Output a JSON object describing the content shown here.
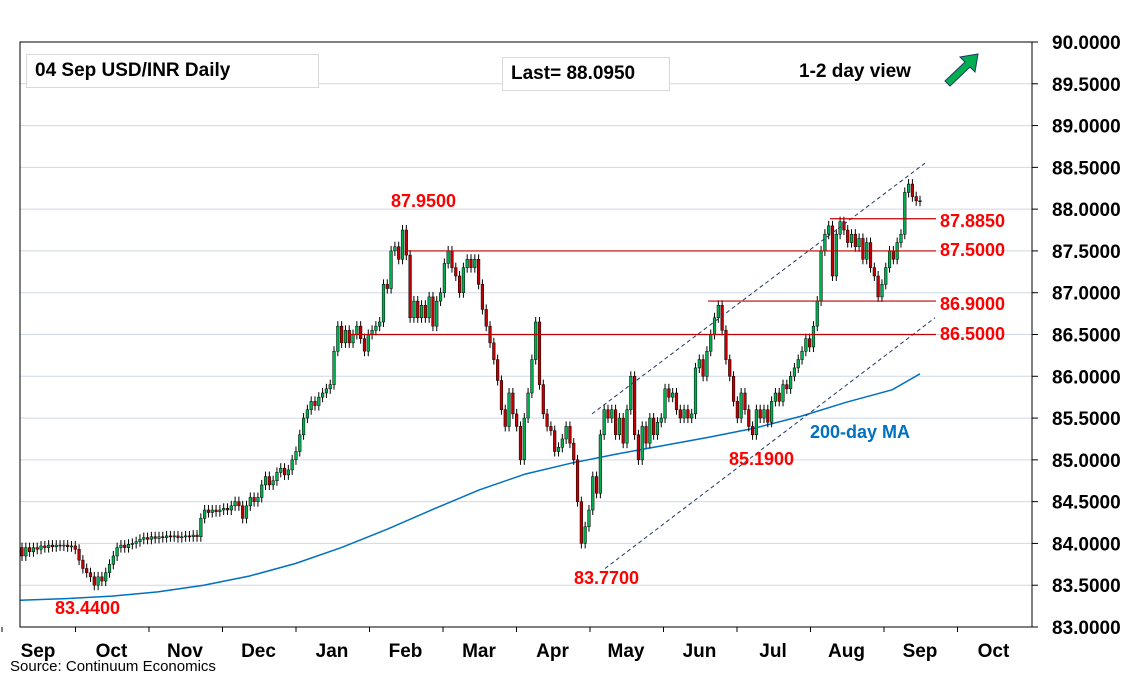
{
  "chart_data": {
    "type": "candlestick",
    "title": "04 Sep  USD/INR  Daily",
    "last_label": "Last= 88.0950",
    "view_label": "1-2 day view",
    "view_arrow": "up-arrow-icon",
    "source": "Source: Continuum Economics",
    "ylim": [
      83.0,
      90.0
    ],
    "y_ticks": [
      "90.0000",
      "89.5000",
      "89.0000",
      "88.5000",
      "88.0000",
      "87.5000",
      "87.0000",
      "86.5000",
      "86.0000",
      "85.5000",
      "85.0000",
      "84.5000",
      "84.0000",
      "83.5000",
      "83.0000"
    ],
    "x_ticks": [
      "Sep",
      "Oct",
      "Nov",
      "Dec",
      "Jan",
      "Feb",
      "Mar",
      "Apr",
      "May",
      "Jun",
      "Jul",
      "Aug",
      "Sep",
      "Oct"
    ],
    "grid": true,
    "colors": {
      "up": "#00b050",
      "down": "#c00000",
      "ma": "#0070c0",
      "levels": "#c00000",
      "channel": "#1f3864",
      "label": "#ff0000"
    },
    "levels": [
      {
        "value": 87.885,
        "label": "87.8850"
      },
      {
        "value": 87.5,
        "label": "87.5000"
      },
      {
        "value": 86.9,
        "label": "86.9000"
      },
      {
        "value": 86.5,
        "label": "86.5000"
      }
    ],
    "extremes": [
      {
        "label": "87.9500",
        "value": 87.95
      },
      {
        "label": "83.4400",
        "value": 83.44
      },
      {
        "label": "83.7700",
        "value": 83.77
      },
      {
        "label": "85.1900",
        "value": 85.19
      }
    ],
    "ma_label": "200-day MA",
    "ma_series": [
      {
        "x": 0,
        "y": 83.32
      },
      {
        "x": 20,
        "y": 83.34
      },
      {
        "x": 40,
        "y": 83.37
      },
      {
        "x": 60,
        "y": 83.42
      },
      {
        "x": 80,
        "y": 83.5
      },
      {
        "x": 100,
        "y": 83.61
      },
      {
        "x": 120,
        "y": 83.76
      },
      {
        "x": 140,
        "y": 83.95
      },
      {
        "x": 160,
        "y": 84.17
      },
      {
        "x": 180,
        "y": 84.41
      },
      {
        "x": 200,
        "y": 84.64
      },
      {
        "x": 220,
        "y": 84.83
      },
      {
        "x": 240,
        "y": 84.96
      },
      {
        "x": 260,
        "y": 85.07
      },
      {
        "x": 280,
        "y": 85.17
      },
      {
        "x": 300,
        "y": 85.27
      },
      {
        "x": 320,
        "y": 85.38
      },
      {
        "x": 340,
        "y": 85.52
      },
      {
        "x": 360,
        "y": 85.69
      },
      {
        "x": 380,
        "y": 85.84
      },
      {
        "x": 392,
        "y": 86.03
      }
    ],
    "series": [
      {
        "o": 83.95,
        "c": 83.85
      },
      {
        "o": 83.85,
        "c": 83.95
      },
      {
        "o": 83.95,
        "c": 83.9
      },
      {
        "o": 83.9,
        "c": 83.95
      },
      {
        "o": 83.95,
        "c": 83.93
      },
      {
        "o": 83.93,
        "c": 83.97
      },
      {
        "o": 83.97,
        "c": 83.95
      },
      {
        "o": 83.95,
        "c": 83.98
      },
      {
        "o": 83.98,
        "c": 83.96
      },
      {
        "o": 83.96,
        "c": 83.98
      },
      {
        "o": 83.98,
        "c": 83.97
      },
      {
        "o": 83.97,
        "c": 83.98
      },
      {
        "o": 83.98,
        "c": 83.96
      },
      {
        "o": 83.96,
        "c": 83.97
      },
      {
        "o": 83.97,
        "c": 83.93
      },
      {
        "o": 83.93,
        "c": 83.8
      },
      {
        "o": 83.8,
        "c": 83.7
      },
      {
        "o": 83.7,
        "c": 83.65
      },
      {
        "o": 83.65,
        "c": 83.6
      },
      {
        "o": 83.6,
        "c": 83.5
      },
      {
        "o": 83.5,
        "c": 83.6
      },
      {
        "o": 83.6,
        "c": 83.55
      },
      {
        "o": 83.55,
        "c": 83.65
      },
      {
        "o": 83.65,
        "c": 83.75
      },
      {
        "o": 83.75,
        "c": 83.85
      },
      {
        "o": 83.85,
        "c": 83.95
      },
      {
        "o": 83.95,
        "c": 83.98
      },
      {
        "o": 83.98,
        "c": 83.95
      },
      {
        "o": 83.95,
        "c": 83.99
      },
      {
        "o": 83.99,
        "c": 84.0
      },
      {
        "o": 84.0,
        "c": 84.02
      },
      {
        "o": 84.02,
        "c": 84.05
      },
      {
        "o": 84.05,
        "c": 84.07
      },
      {
        "o": 84.07,
        "c": 84.05
      },
      {
        "o": 84.05,
        "c": 84.08
      },
      {
        "o": 84.08,
        "c": 84.06
      },
      {
        "o": 84.06,
        "c": 84.08
      },
      {
        "o": 84.08,
        "c": 84.07
      },
      {
        "o": 84.07,
        "c": 84.09
      },
      {
        "o": 84.09,
        "c": 84.08
      },
      {
        "o": 84.08,
        "c": 84.09
      },
      {
        "o": 84.09,
        "c": 84.07
      },
      {
        "o": 84.07,
        "c": 84.08
      },
      {
        "o": 84.08,
        "c": 84.09
      },
      {
        "o": 84.09,
        "c": 84.08
      },
      {
        "o": 84.08,
        "c": 84.1
      },
      {
        "o": 84.1,
        "c": 84.08
      },
      {
        "o": 84.08,
        "c": 84.3
      },
      {
        "o": 84.3,
        "c": 84.4
      },
      {
        "o": 84.4,
        "c": 84.37
      },
      {
        "o": 84.37,
        "c": 84.4
      },
      {
        "o": 84.4,
        "c": 84.38
      },
      {
        "o": 84.38,
        "c": 84.4
      },
      {
        "o": 84.4,
        "c": 84.42
      },
      {
        "o": 84.42,
        "c": 84.4
      },
      {
        "o": 84.4,
        "c": 84.45
      },
      {
        "o": 84.45,
        "c": 84.5
      },
      {
        "o": 84.5,
        "c": 84.45
      },
      {
        "o": 84.45,
        "c": 84.3
      },
      {
        "o": 84.3,
        "c": 84.45
      },
      {
        "o": 84.45,
        "c": 84.55
      },
      {
        "o": 84.55,
        "c": 84.5
      },
      {
        "o": 84.5,
        "c": 84.55
      },
      {
        "o": 84.55,
        "c": 84.7
      },
      {
        "o": 84.7,
        "c": 84.8
      },
      {
        "o": 84.8,
        "c": 84.7
      },
      {
        "o": 84.7,
        "c": 84.75
      },
      {
        "o": 84.75,
        "c": 84.85
      },
      {
        "o": 84.85,
        "c": 84.9
      },
      {
        "o": 84.9,
        "c": 84.82
      },
      {
        "o": 84.82,
        "c": 84.88
      },
      {
        "o": 84.88,
        "c": 85.0
      },
      {
        "o": 85.0,
        "c": 85.1
      },
      {
        "o": 85.1,
        "c": 85.3
      },
      {
        "o": 85.3,
        "c": 85.5
      },
      {
        "o": 85.5,
        "c": 85.6
      },
      {
        "o": 85.6,
        "c": 85.7
      },
      {
        "o": 85.7,
        "c": 85.65
      },
      {
        "o": 85.65,
        "c": 85.75
      },
      {
        "o": 85.75,
        "c": 85.8
      },
      {
        "o": 85.8,
        "c": 85.85
      },
      {
        "o": 85.85,
        "c": 85.9
      },
      {
        "o": 85.9,
        "c": 86.3
      },
      {
        "o": 86.3,
        "c": 86.6
      },
      {
        "o": 86.6,
        "c": 86.4
      },
      {
        "o": 86.4,
        "c": 86.55
      },
      {
        "o": 86.55,
        "c": 86.4
      },
      {
        "o": 86.4,
        "c": 86.5
      },
      {
        "o": 86.5,
        "c": 86.6
      },
      {
        "o": 86.6,
        "c": 86.45
      },
      {
        "o": 86.45,
        "c": 86.3
      },
      {
        "o": 86.3,
        "c": 86.5
      },
      {
        "o": 86.5,
        "c": 86.55
      },
      {
        "o": 86.55,
        "c": 86.6
      },
      {
        "o": 86.6,
        "c": 86.65
      },
      {
        "o": 86.65,
        "c": 87.1
      },
      {
        "o": 87.1,
        "c": 87.05
      },
      {
        "o": 87.05,
        "c": 87.5
      },
      {
        "o": 87.5,
        "c": 87.55
      },
      {
        "o": 87.55,
        "c": 87.4
      },
      {
        "o": 87.4,
        "c": 87.75
      },
      {
        "o": 87.75,
        "c": 87.45
      },
      {
        "o": 87.45,
        "c": 86.7
      },
      {
        "o": 86.7,
        "c": 86.9
      },
      {
        "o": 86.9,
        "c": 86.7
      },
      {
        "o": 86.7,
        "c": 86.85
      },
      {
        "o": 86.85,
        "c": 86.7
      },
      {
        "o": 86.7,
        "c": 86.95
      },
      {
        "o": 86.95,
        "c": 86.6
      },
      {
        "o": 86.6,
        "c": 86.9
      },
      {
        "o": 86.9,
        "c": 87.0
      },
      {
        "o": 87.0,
        "c": 87.35
      },
      {
        "o": 87.35,
        "c": 87.5
      },
      {
        "o": 87.5,
        "c": 87.3
      },
      {
        "o": 87.3,
        "c": 87.2
      },
      {
        "o": 87.2,
        "c": 87.0
      },
      {
        "o": 87.0,
        "c": 87.3
      },
      {
        "o": 87.3,
        "c": 87.4
      },
      {
        "o": 87.4,
        "c": 87.3
      },
      {
        "o": 87.3,
        "c": 87.4
      },
      {
        "o": 87.4,
        "c": 87.1
      },
      {
        "o": 87.1,
        "c": 86.8
      },
      {
        "o": 86.8,
        "c": 86.6
      },
      {
        "o": 86.6,
        "c": 86.4
      },
      {
        "o": 86.4,
        "c": 86.2
      },
      {
        "o": 86.2,
        "c": 85.95
      },
      {
        "o": 85.95,
        "c": 85.6
      },
      {
        "o": 85.6,
        "c": 85.4
      },
      {
        "o": 85.4,
        "c": 85.8
      },
      {
        "o": 85.8,
        "c": 85.55
      },
      {
        "o": 85.55,
        "c": 85.4
      },
      {
        "o": 85.4,
        "c": 85.0
      },
      {
        "o": 85.0,
        "c": 85.5
      },
      {
        "o": 85.5,
        "c": 85.8
      },
      {
        "o": 85.8,
        "c": 86.2
      },
      {
        "o": 86.2,
        "c": 86.65
      },
      {
        "o": 86.65,
        "c": 85.9
      },
      {
        "o": 85.9,
        "c": 85.55
      },
      {
        "o": 85.55,
        "c": 85.4
      },
      {
        "o": 85.4,
        "c": 85.35
      },
      {
        "o": 85.35,
        "c": 85.1
      },
      {
        "o": 85.1,
        "c": 85.15
      },
      {
        "o": 85.15,
        "c": 85.25
      },
      {
        "o": 85.25,
        "c": 85.4
      },
      {
        "o": 85.4,
        "c": 85.2
      },
      {
        "o": 85.2,
        "c": 85.0
      },
      {
        "o": 85.0,
        "c": 84.5
      },
      {
        "o": 84.5,
        "c": 84.0
      },
      {
        "o": 84.0,
        "c": 84.2
      },
      {
        "o": 84.2,
        "c": 84.4
      },
      {
        "o": 84.4,
        "c": 84.8
      },
      {
        "o": 84.8,
        "c": 84.6
      },
      {
        "o": 84.6,
        "c": 85.3
      },
      {
        "o": 85.3,
        "c": 85.6
      },
      {
        "o": 85.6,
        "c": 85.5
      },
      {
        "o": 85.5,
        "c": 85.6
      },
      {
        "o": 85.6,
        "c": 85.3
      },
      {
        "o": 85.3,
        "c": 85.5
      },
      {
        "o": 85.5,
        "c": 85.2
      },
      {
        "o": 85.2,
        "c": 85.6
      },
      {
        "o": 85.6,
        "c": 86.0
      },
      {
        "o": 86.0,
        "c": 85.3
      },
      {
        "o": 85.3,
        "c": 85.0
      },
      {
        "o": 85.0,
        "c": 85.4
      },
      {
        "o": 85.4,
        "c": 85.2
      },
      {
        "o": 85.2,
        "c": 85.5
      },
      {
        "o": 85.5,
        "c": 85.3
      },
      {
        "o": 85.3,
        "c": 85.45
      },
      {
        "o": 85.45,
        "c": 85.5
      },
      {
        "o": 85.5,
        "c": 85.85
      },
      {
        "o": 85.85,
        "c": 85.75
      },
      {
        "o": 85.75,
        "c": 85.8
      },
      {
        "o": 85.8,
        "c": 85.6
      },
      {
        "o": 85.6,
        "c": 85.5
      },
      {
        "o": 85.5,
        "c": 85.6
      },
      {
        "o": 85.6,
        "c": 85.5
      },
      {
        "o": 85.5,
        "c": 85.55
      },
      {
        "o": 85.55,
        "c": 86.1
      },
      {
        "o": 86.1,
        "c": 86.2
      },
      {
        "o": 86.2,
        "c": 86.0
      },
      {
        "o": 86.0,
        "c": 86.3
      },
      {
        "o": 86.3,
        "c": 86.5
      },
      {
        "o": 86.5,
        "c": 86.7
      },
      {
        "o": 86.7,
        "c": 86.85
      },
      {
        "o": 86.85,
        "c": 86.55
      },
      {
        "o": 86.55,
        "c": 86.2
      },
      {
        "o": 86.2,
        "c": 86.0
      },
      {
        "o": 86.0,
        "c": 85.7
      },
      {
        "o": 85.7,
        "c": 85.5
      },
      {
        "o": 85.5,
        "c": 85.8
      },
      {
        "o": 85.8,
        "c": 85.6
      },
      {
        "o": 85.6,
        "c": 85.4
      },
      {
        "o": 85.4,
        "c": 85.3
      },
      {
        "o": 85.3,
        "c": 85.6
      },
      {
        "o": 85.6,
        "c": 85.5
      },
      {
        "o": 85.5,
        "c": 85.6
      },
      {
        "o": 85.6,
        "c": 85.45
      },
      {
        "o": 85.45,
        "c": 85.7
      },
      {
        "o": 85.7,
        "c": 85.8
      },
      {
        "o": 85.8,
        "c": 85.7
      },
      {
        "o": 85.7,
        "c": 85.9
      },
      {
        "o": 85.9,
        "c": 85.85
      },
      {
        "o": 85.85,
        "c": 86.0
      },
      {
        "o": 86.0,
        "c": 86.1
      },
      {
        "o": 86.1,
        "c": 86.2
      },
      {
        "o": 86.2,
        "c": 86.3
      },
      {
        "o": 86.3,
        "c": 86.45
      },
      {
        "o": 86.45,
        "c": 86.35
      },
      {
        "o": 86.35,
        "c": 86.6
      },
      {
        "o": 86.6,
        "c": 86.9
      },
      {
        "o": 86.9,
        "c": 87.5
      },
      {
        "o": 87.5,
        "c": 87.7
      },
      {
        "o": 87.7,
        "c": 87.8
      },
      {
        "o": 87.8,
        "c": 87.2
      },
      {
        "o": 87.2,
        "c": 87.7
      },
      {
        "o": 87.7,
        "c": 87.85
      },
      {
        "o": 87.85,
        "c": 87.75
      },
      {
        "o": 87.75,
        "c": 87.6
      },
      {
        "o": 87.6,
        "c": 87.7
      },
      {
        "o": 87.7,
        "c": 87.55
      },
      {
        "o": 87.55,
        "c": 87.65
      },
      {
        "o": 87.65,
        "c": 87.4
      },
      {
        "o": 87.4,
        "c": 87.6
      },
      {
        "o": 87.6,
        "c": 87.3
      },
      {
        "o": 87.3,
        "c": 87.2
      },
      {
        "o": 87.2,
        "c": 86.95
      },
      {
        "o": 86.95,
        "c": 87.1
      },
      {
        "o": 87.1,
        "c": 87.3
      },
      {
        "o": 87.3,
        "c": 87.5
      },
      {
        "o": 87.5,
        "c": 87.4
      },
      {
        "o": 87.4,
        "c": 87.6
      },
      {
        "o": 87.6,
        "c": 87.7
      },
      {
        "o": 87.7,
        "c": 88.2
      },
      {
        "o": 88.2,
        "c": 88.3
      },
      {
        "o": 88.3,
        "c": 88.15
      },
      {
        "o": 88.15,
        "c": 88.1
      },
      {
        "o": 88.1,
        "c": 88.095
      }
    ]
  }
}
